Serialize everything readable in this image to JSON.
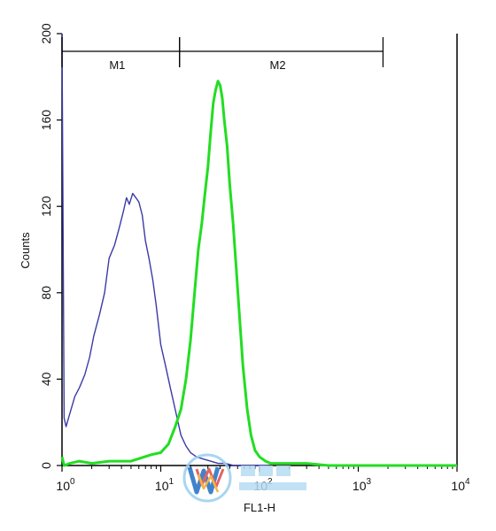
{
  "chart_data": {
    "type": "line",
    "xlabel": "FL1-H",
    "ylabel": "Counts",
    "x_scale": "log",
    "xlim": [
      1,
      10000
    ],
    "ylim": [
      0,
      200
    ],
    "y_ticks": [
      0,
      40,
      80,
      120,
      160,
      200
    ],
    "x_ticks": [
      {
        "base": "10",
        "exp": "0"
      },
      {
        "base": "10",
        "exp": "1"
      },
      {
        "base": "10",
        "exp": "2"
      },
      {
        "base": "10",
        "exp": "3"
      },
      {
        "base": "10",
        "exp": "4"
      }
    ],
    "grid": false,
    "markers": [
      {
        "label": "M1",
        "from": 1.0,
        "to": 15.5
      },
      {
        "label": "M2",
        "from": 15.5,
        "to": 1780
      }
    ],
    "series": [
      {
        "color": "#3a3aa8",
        "x": [
          1.0,
          1.05,
          1.1,
          1.2,
          1.35,
          1.5,
          1.7,
          1.9,
          2.1,
          2.4,
          2.7,
          3.0,
          3.4,
          3.8,
          4.2,
          4.5,
          4.8,
          5.2,
          5.6,
          6.0,
          6.5,
          7.0,
          7.6,
          8.3,
          9.0,
          10.0,
          11.2,
          12.5,
          14.0,
          16.0,
          18.0,
          20.0,
          23.0,
          27.0,
          32.0,
          38.0,
          45.0,
          55.0,
          70.0,
          90.0,
          120.0
        ],
        "y": [
          200,
          22,
          18,
          24,
          32,
          36,
          42,
          50,
          60,
          70,
          80,
          96,
          102,
          110,
          118,
          124,
          121,
          126,
          124,
          122,
          116,
          104,
          96,
          86,
          74,
          56,
          46,
          36,
          26,
          14,
          9,
          6,
          4,
          3,
          2,
          1,
          1,
          0,
          0,
          0,
          0
        ]
      },
      {
        "color": "#22dd22",
        "x": [
          1.0,
          1.05,
          1.2,
          1.5,
          2.0,
          3.0,
          5.0,
          8.0,
          10.0,
          12.0,
          14.0,
          16.0,
          18.0,
          20.0,
          22.0,
          24.0,
          26.0,
          28.0,
          30.0,
          32.0,
          34.0,
          36.0,
          38.0,
          40.0,
          42.0,
          44.0,
          47.0,
          50.0,
          54.0,
          58.0,
          63.0,
          68.0,
          75.0,
          82.0,
          90.0,
          100.0,
          115.0,
          130.0,
          160.0,
          200.0,
          300.0,
          500.0,
          1000.0,
          2000.0,
          10000.0
        ],
        "y": [
          4,
          0,
          1,
          2,
          1,
          2,
          2,
          5,
          6,
          10,
          18,
          26,
          40,
          58,
          80,
          100,
          112,
          126,
          138,
          154,
          168,
          174,
          178,
          176,
          170,
          160,
          148,
          130,
          112,
          92,
          68,
          46,
          26,
          14,
          7,
          4,
          2,
          1,
          1,
          1,
          1,
          0,
          0,
          0,
          0
        ]
      }
    ]
  }
}
